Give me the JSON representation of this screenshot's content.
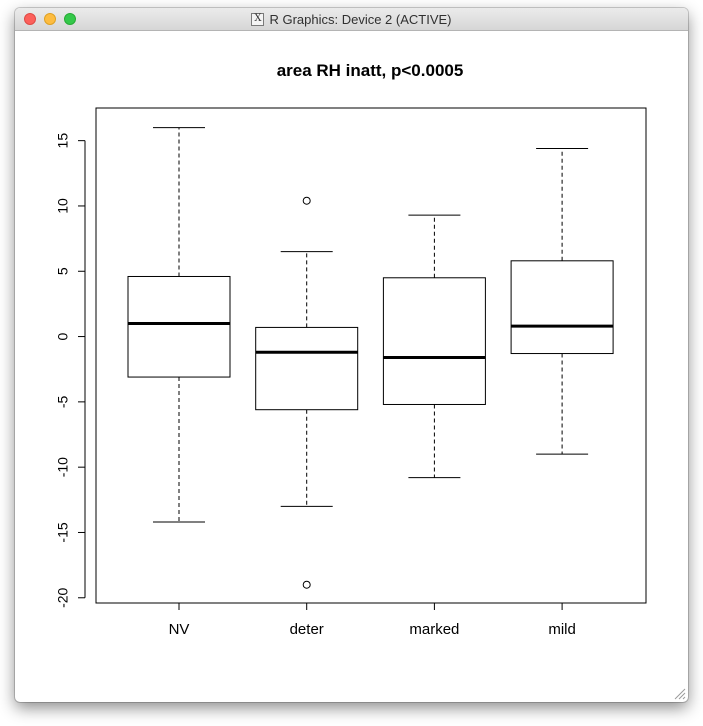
{
  "window": {
    "title": "R Graphics: Device 2 (ACTIVE)",
    "icon": "x11-icon",
    "icon_glyph": "X"
  },
  "chart_data": {
    "type": "boxplot",
    "title": "area RH inatt, p<0.0005",
    "xlabel": "",
    "ylabel": "",
    "categories": [
      "NV",
      "deter",
      "marked",
      "mild"
    ],
    "yticks": [
      -20,
      -15,
      -10,
      -5,
      0,
      5,
      10,
      15
    ],
    "ytick_labels": [
      "-20",
      "-15",
      "-10",
      "-5",
      "0",
      "5",
      "10",
      "15"
    ],
    "ylim": [
      -20.4,
      17.5
    ],
    "boxes": [
      {
        "name": "NV",
        "whisker_low": -14.2,
        "q1": -3.1,
        "median": 1.0,
        "q3": 4.6,
        "whisker_high": 16.0,
        "outliers": []
      },
      {
        "name": "deter",
        "whisker_low": -13.0,
        "q1": -5.6,
        "median": -1.2,
        "q3": 0.7,
        "whisker_high": 6.5,
        "outliers": [
          10.4,
          -19.0
        ]
      },
      {
        "name": "marked",
        "whisker_low": -10.8,
        "q1": -5.2,
        "median": -1.6,
        "q3": 4.5,
        "whisker_high": 9.3,
        "outliers": []
      },
      {
        "name": "mild",
        "whisker_low": -9.0,
        "q1": -1.3,
        "median": 0.8,
        "q3": 5.8,
        "whisker_high": 14.4,
        "outliers": []
      }
    ],
    "grid": false,
    "legend": "none"
  }
}
